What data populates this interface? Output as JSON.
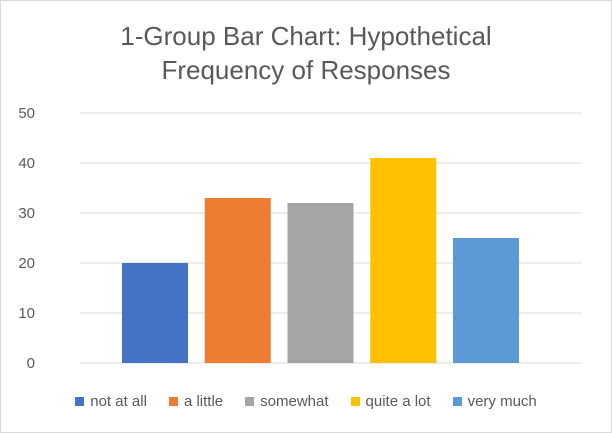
{
  "chart_data": {
    "type": "bar",
    "title_lines": [
      "1-Group Bar Chart: Hypothetical",
      "Frequency of Responses"
    ],
    "categories": [
      "not at all",
      "a little",
      "somewhat",
      "quite a lot",
      "very much"
    ],
    "values": [
      20,
      33,
      32,
      41,
      25
    ],
    "colors": [
      "#4472c4",
      "#ed7d31",
      "#a5a5a5",
      "#ffc000",
      "#5b9bd5"
    ],
    "ylim": [
      0,
      50
    ],
    "yticks": [
      0,
      10,
      20,
      30,
      40,
      50
    ],
    "grid": true,
    "legend_position": "bottom",
    "gridline_color": "#d9d9d9"
  }
}
